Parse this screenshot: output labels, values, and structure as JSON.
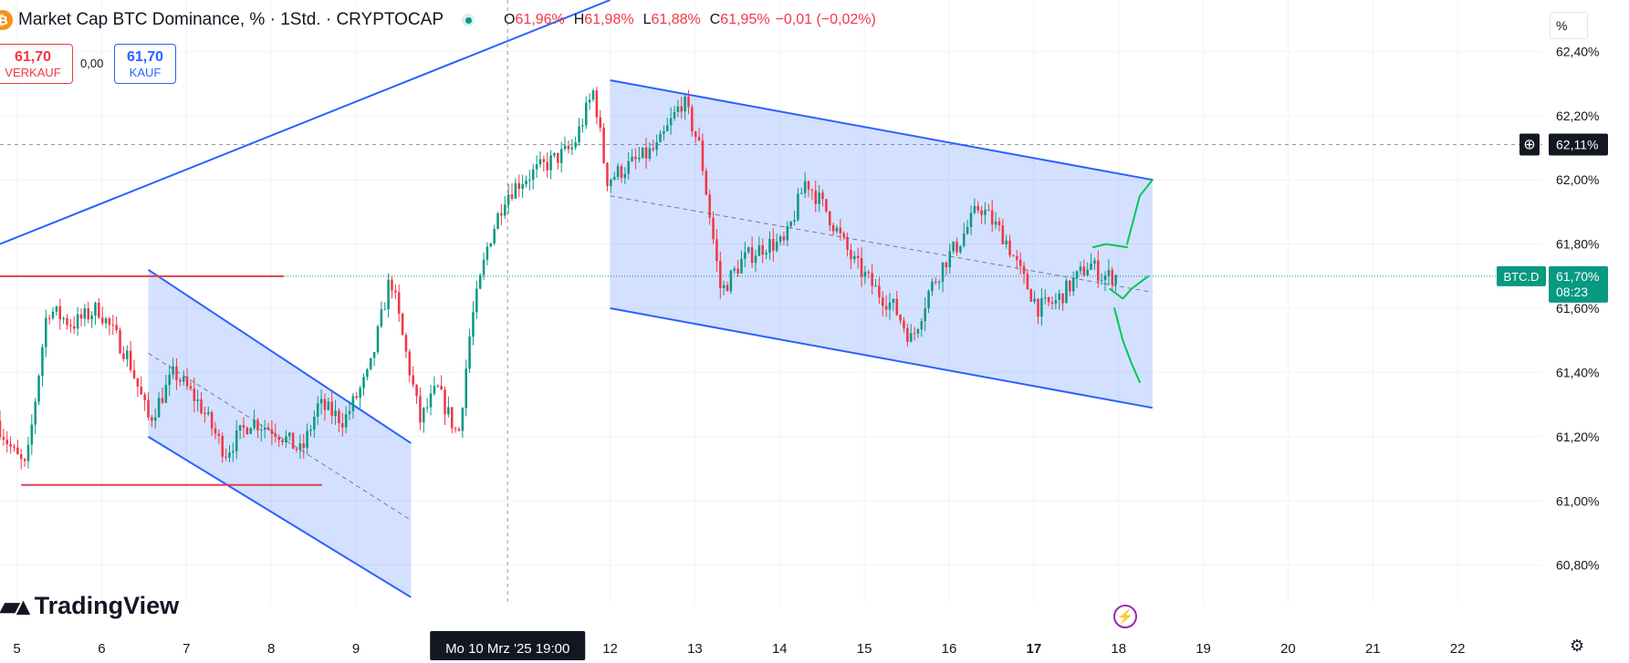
{
  "header": {
    "title": "Market Cap BTC Dominance, % · 1Std. · CRYPTOCAP",
    "ohlc": [
      {
        "key": "O",
        "value": "61,96%"
      },
      {
        "key": "H",
        "value": "61,98%"
      },
      {
        "key": "L",
        "value": "61,88%"
      },
      {
        "key": "C",
        "value": "61,95%"
      },
      {
        "key": "",
        "value": "−0,01 (−0,02%)"
      }
    ]
  },
  "trade": {
    "sell_price": "61,70",
    "sell_label": "VERKAUF",
    "spread": "0,00",
    "buy_price": "61,70",
    "buy_label": "KAUF"
  },
  "scale_mode": "%",
  "branding": {
    "name": "TradingView"
  },
  "colors": {
    "up": "#089981",
    "down": "#f23645",
    "channel_line": "#2962ff",
    "channel_fill": "#2962ff",
    "drawing_green": "#00c853",
    "level_red": "#e04050"
  },
  "chart_data": {
    "type": "candlestick",
    "timeframe": "1 hour",
    "y_unit": "%",
    "ylim": [
      60.68,
      62.56
    ],
    "ytick_values": [
      60.8,
      61.0,
      61.2,
      61.4,
      61.6,
      61.8,
      62.0,
      62.2,
      62.4
    ],
    "ytick_labels": [
      "60,80%",
      "61,00%",
      "61,20%",
      "61,40%",
      "61,60%",
      "61,80%",
      "62,00%",
      "62,20%",
      "62,40%"
    ],
    "xlim": [
      4.8,
      23.0
    ],
    "xtick_values": [
      5,
      6,
      7,
      8,
      9,
      12,
      13,
      14,
      15,
      16,
      17,
      18,
      19,
      20,
      21,
      22
    ],
    "xtick_labels": [
      "5",
      "6",
      "7",
      "8",
      "9",
      "12",
      "13",
      "14",
      "15",
      "16",
      "17",
      "18",
      "19",
      "20",
      "21",
      "22"
    ],
    "crosshair": {
      "x": 10.79,
      "y": 62.11,
      "x_label": "Mo 10 Mrz '25   19:00",
      "y_label": "62,11%"
    },
    "last_price": {
      "y": 61.7,
      "symbol": "BTC.D",
      "value": "61,70%",
      "countdown": "08:23"
    },
    "grid": true,
    "anchors": [
      [
        4.8,
        61.25
      ],
      [
        5.0,
        61.15
      ],
      [
        5.15,
        61.1
      ],
      [
        5.4,
        61.6
      ],
      [
        5.7,
        61.55
      ],
      [
        6.0,
        61.6
      ],
      [
        6.35,
        61.45
      ],
      [
        6.6,
        61.25
      ],
      [
        6.9,
        61.4
      ],
      [
        7.2,
        61.3
      ],
      [
        7.5,
        61.15
      ],
      [
        7.8,
        61.25
      ],
      [
        8.1,
        61.22
      ],
      [
        8.4,
        61.15
      ],
      [
        8.6,
        61.3
      ],
      [
        8.9,
        61.25
      ],
      [
        9.2,
        61.4
      ],
      [
        9.45,
        61.7
      ],
      [
        9.6,
        61.5
      ],
      [
        9.8,
        61.25
      ],
      [
        10.0,
        61.35
      ],
      [
        10.25,
        61.2
      ],
      [
        10.4,
        61.55
      ],
      [
        10.6,
        61.8
      ],
      [
        10.8,
        61.95
      ],
      [
        11.0,
        62.0
      ],
      [
        11.3,
        62.05
      ],
      [
        11.6,
        62.1
      ],
      [
        11.85,
        62.28
      ],
      [
        12.0,
        62.0
      ],
      [
        12.3,
        62.05
      ],
      [
        12.6,
        62.1
      ],
      [
        12.9,
        62.25
      ],
      [
        13.1,
        62.1
      ],
      [
        13.35,
        61.65
      ],
      [
        13.6,
        61.75
      ],
      [
        13.9,
        61.8
      ],
      [
        14.1,
        61.8
      ],
      [
        14.35,
        62.0
      ],
      [
        14.6,
        61.9
      ],
      [
        14.9,
        61.75
      ],
      [
        15.2,
        61.65
      ],
      [
        15.4,
        61.6
      ],
      [
        15.6,
        61.5
      ],
      [
        15.8,
        61.65
      ],
      [
        16.0,
        61.75
      ],
      [
        16.15,
        61.8
      ],
      [
        16.4,
        61.92
      ],
      [
        16.7,
        61.82
      ],
      [
        16.9,
        61.7
      ],
      [
        17.1,
        61.6
      ],
      [
        17.3,
        61.62
      ],
      [
        17.5,
        61.68
      ],
      [
        17.7,
        61.74
      ],
      [
        17.85,
        61.7
      ],
      [
        17.97,
        61.7
      ]
    ],
    "drawings": [
      {
        "type": "trendline",
        "color": "#2962ff",
        "points": [
          [
            4.8,
            61.8
          ],
          [
            12.0,
            62.56
          ]
        ]
      },
      {
        "type": "parallel_channel",
        "color": "#2962ff",
        "top": [
          [
            12.0,
            62.31
          ],
          [
            18.4,
            62.0
          ]
        ],
        "bottom": [
          [
            12.0,
            61.6
          ],
          [
            18.4,
            61.29
          ]
        ],
        "median": [
          [
            12.0,
            61.95
          ],
          [
            18.4,
            61.65
          ]
        ]
      },
      {
        "type": "parallel_channel",
        "color": "#2962ff",
        "top": [
          [
            6.55,
            61.72
          ],
          [
            9.65,
            61.18
          ]
        ],
        "bottom": [
          [
            6.55,
            61.2
          ],
          [
            9.65,
            60.7
          ]
        ],
        "median": [
          [
            6.55,
            61.46
          ],
          [
            9.65,
            60.94
          ]
        ]
      },
      {
        "type": "horizontal_segment",
        "color": "#e04050",
        "points": [
          [
            4.8,
            61.7
          ],
          [
            8.15,
            61.7
          ]
        ]
      },
      {
        "type": "horizontal_segment",
        "color": "#e04050",
        "points": [
          [
            5.05,
            61.05
          ],
          [
            8.6,
            61.05
          ]
        ]
      },
      {
        "type": "brush",
        "color": "#00c853",
        "points": [
          [
            18.1,
            61.8
          ],
          [
            18.25,
            61.95
          ],
          [
            18.4,
            62.0
          ]
        ]
      },
      {
        "type": "brush",
        "color": "#00c853",
        "points": [
          [
            17.7,
            61.79
          ],
          [
            17.85,
            61.8
          ],
          [
            18.1,
            61.79
          ]
        ]
      },
      {
        "type": "brush",
        "color": "#00c853",
        "points": [
          [
            17.9,
            61.66
          ],
          [
            18.05,
            61.63
          ],
          [
            18.15,
            61.66
          ],
          [
            18.35,
            61.7
          ]
        ]
      },
      {
        "type": "brush",
        "color": "#00c853",
        "points": [
          [
            17.95,
            61.6
          ],
          [
            18.05,
            61.5
          ],
          [
            18.15,
            61.43
          ],
          [
            18.25,
            61.37
          ]
        ]
      }
    ]
  }
}
